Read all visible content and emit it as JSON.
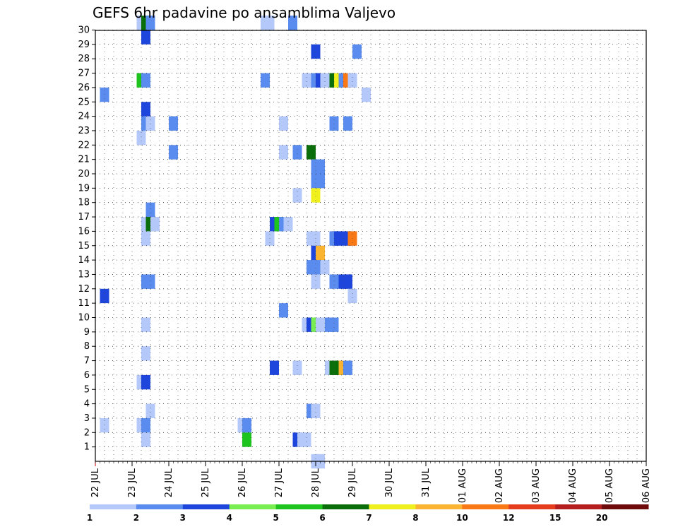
{
  "chart_data": {
    "type": "heatmap",
    "title": "GEFS 6hr padavine po ansamblima Valjevo",
    "y_labels": [
      "1",
      "2",
      "3",
      "4",
      "5",
      "6",
      "7",
      "8",
      "9",
      "10",
      "11",
      "12",
      "13",
      "14",
      "15",
      "16",
      "17",
      "18",
      "19",
      "20",
      "21",
      "22",
      "23",
      "24",
      "25",
      "26",
      "27",
      "28",
      "29",
      "30"
    ],
    "x_labels": [
      "22 JUL",
      "23 JUL",
      "24 JUL",
      "25 JUL",
      "26 JUL",
      "27 JUL",
      "28 JUL",
      "29 JUL",
      "30 JUL",
      "31 JUL",
      "01 AUG",
      "02 AUG",
      "03 AUG",
      "04 AUG",
      "05 AUG",
      "06 AUG"
    ],
    "x_unit": "6-hour steps from 22 JUL 00Z",
    "colorbar": {
      "ticks": [
        "1",
        "2",
        "3",
        "4",
        "5",
        "6",
        "7",
        "8",
        "10",
        "12",
        "15",
        "20"
      ],
      "colors": [
        "#b4c8fa",
        "#5a8cf0",
        "#1e46dc",
        "#78ee50",
        "#1ec41e",
        "#0a6e0a",
        "#f0f01e",
        "#fab432",
        "#fa7814",
        "#e63c1e",
        "#b41e1e",
        "#6e0a0a"
      ]
    },
    "cells": [
      {
        "member": 30,
        "t": 9,
        "v": 1
      },
      {
        "member": 30,
        "t": 10,
        "v": 6
      },
      {
        "member": 30,
        "t": 11,
        "v": 2
      },
      {
        "member": 30,
        "t": 36,
        "v": 1
      },
      {
        "member": 30,
        "t": 37,
        "v": 1
      },
      {
        "member": 30,
        "t": 42,
        "v": 2
      },
      {
        "member": 29,
        "t": 10,
        "v": 3
      },
      {
        "member": 28,
        "t": 47,
        "v": 3
      },
      {
        "member": 28,
        "t": 56,
        "v": 2
      },
      {
        "member": 26,
        "t": 9,
        "v": 5
      },
      {
        "member": 26,
        "t": 10,
        "v": 2
      },
      {
        "member": 26,
        "t": 36,
        "v": 2
      },
      {
        "member": 26,
        "t": 45,
        "v": 1
      },
      {
        "member": 26,
        "t": 47,
        "v": 2
      },
      {
        "member": 26,
        "t": 48,
        "v": 3
      },
      {
        "member": 26,
        "t": 49,
        "v": 1
      },
      {
        "member": 26,
        "t": 51,
        "v": 6
      },
      {
        "member": 26,
        "t": 52,
        "v": 7
      },
      {
        "member": 26,
        "t": 53,
        "v": 2
      },
      {
        "member": 26,
        "t": 54,
        "v": 10
      },
      {
        "member": 26,
        "t": 55,
        "v": 1
      },
      {
        "member": 25,
        "t": 1,
        "v": 2
      },
      {
        "member": 25,
        "t": 58,
        "v": 1
      },
      {
        "member": 24,
        "t": 10,
        "v": 3
      },
      {
        "member": 23,
        "t": 10,
        "v": 2
      },
      {
        "member": 23,
        "t": 11,
        "v": 1
      },
      {
        "member": 23,
        "t": 16,
        "v": 2
      },
      {
        "member": 23,
        "t": 40,
        "v": 1
      },
      {
        "member": 23,
        "t": 51,
        "v": 2
      },
      {
        "member": 23,
        "t": 54,
        "v": 2
      },
      {
        "member": 22,
        "t": 9,
        "v": 1
      },
      {
        "member": 21,
        "t": 16,
        "v": 2
      },
      {
        "member": 21,
        "t": 40,
        "v": 1
      },
      {
        "member": 21,
        "t": 43,
        "v": 2
      },
      {
        "member": 21,
        "t": 46,
        "v": 6
      },
      {
        "member": 20,
        "t": 47,
        "v": 2
      },
      {
        "member": 20,
        "t": 48,
        "v": 2
      },
      {
        "member": 19,
        "t": 47,
        "v": 2
      },
      {
        "member": 19,
        "t": 48,
        "v": 2
      },
      {
        "member": 18,
        "t": 43,
        "v": 1
      },
      {
        "member": 18,
        "t": 47,
        "v": 7
      },
      {
        "member": 17,
        "t": 11,
        "v": 2
      },
      {
        "member": 16,
        "t": 10,
        "v": 1
      },
      {
        "member": 16,
        "t": 11,
        "v": 6
      },
      {
        "member": 16,
        "t": 12,
        "v": 1
      },
      {
        "member": 16,
        "t": 38,
        "v": 3
      },
      {
        "member": 16,
        "t": 39,
        "v": 5
      },
      {
        "member": 16,
        "t": 40,
        "v": 2
      },
      {
        "member": 16,
        "t": 41,
        "v": 1
      },
      {
        "member": 15,
        "t": 10,
        "v": 1
      },
      {
        "member": 15,
        "t": 37,
        "v": 1
      },
      {
        "member": 15,
        "t": 46,
        "v": 1
      },
      {
        "member": 15,
        "t": 47,
        "v": 1
      },
      {
        "member": 15,
        "t": 51,
        "v": 2
      },
      {
        "member": 15,
        "t": 52,
        "v": 3
      },
      {
        "member": 15,
        "t": 54,
        "v": 3
      },
      {
        "member": 15,
        "t": 55,
        "v": 10
      },
      {
        "member": 14,
        "t": 47,
        "v": 3
      },
      {
        "member": 14,
        "t": 48,
        "v": 8
      },
      {
        "member": 13,
        "t": 46,
        "v": 2
      },
      {
        "member": 13,
        "t": 47,
        "v": 2
      },
      {
        "member": 13,
        "t": 49,
        "v": 1
      },
      {
        "member": 12,
        "t": 10,
        "v": 2
      },
      {
        "member": 12,
        "t": 11,
        "v": 2
      },
      {
        "member": 12,
        "t": 47,
        "v": 1
      },
      {
        "member": 12,
        "t": 51,
        "v": 2
      },
      {
        "member": 12,
        "t": 53,
        "v": 3
      },
      {
        "member": 12,
        "t": 54,
        "v": 3
      },
      {
        "member": 11,
        "t": 1,
        "v": 3
      },
      {
        "member": 11,
        "t": 55,
        "v": 1
      },
      {
        "member": 10,
        "t": 40,
        "v": 2
      },
      {
        "member": 9,
        "t": 10,
        "v": 1
      },
      {
        "member": 9,
        "t": 45,
        "v": 1
      },
      {
        "member": 9,
        "t": 46,
        "v": 3
      },
      {
        "member": 9,
        "t": 47,
        "v": 4
      },
      {
        "member": 9,
        "t": 48,
        "v": 1
      },
      {
        "member": 9,
        "t": 50,
        "v": 2
      },
      {
        "member": 9,
        "t": 51,
        "v": 2
      },
      {
        "member": 7,
        "t": 10,
        "v": 1
      },
      {
        "member": 6,
        "t": 38,
        "v": 3
      },
      {
        "member": 6,
        "t": 43,
        "v": 1
      },
      {
        "member": 6,
        "t": 50,
        "v": 1
      },
      {
        "member": 6,
        "t": 51,
        "v": 6
      },
      {
        "member": 6,
        "t": 52,
        "v": 6
      },
      {
        "member": 6,
        "t": 53,
        "v": 8
      },
      {
        "member": 6,
        "t": 54,
        "v": 2
      },
      {
        "member": 5,
        "t": 9,
        "v": 1
      },
      {
        "member": 5,
        "t": 10,
        "v": 3
      },
      {
        "member": 3,
        "t": 11,
        "v": 1
      },
      {
        "member": 3,
        "t": 46,
        "v": 2
      },
      {
        "member": 3,
        "t": 47,
        "v": 1
      },
      {
        "member": 2,
        "t": 1,
        "v": 1
      },
      {
        "member": 2,
        "t": 9,
        "v": 1
      },
      {
        "member": 2,
        "t": 10,
        "v": 2
      },
      {
        "member": 2,
        "t": 31,
        "v": 1
      },
      {
        "member": 2,
        "t": 32,
        "v": 2
      },
      {
        "member": 1,
        "t": 10,
        "v": 1
      },
      {
        "member": 1,
        "t": 32,
        "v": 5
      },
      {
        "member": 1,
        "t": 43,
        "v": 3
      },
      {
        "member": 1,
        "t": 44,
        "v": 1
      },
      {
        "member": 1,
        "t": 45,
        "v": 1
      },
      {
        "member": 0,
        "t": 47,
        "v": 1
      },
      {
        "member": 0,
        "t": 48,
        "v": 1
      }
    ]
  }
}
